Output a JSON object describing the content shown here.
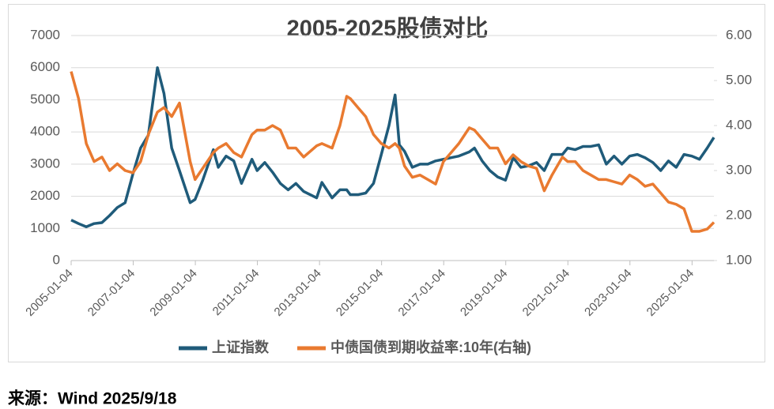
{
  "chart_data": {
    "type": "line",
    "title": "2005-2025股债对比",
    "source": "来源：Wind 2025/9/18",
    "x": [
      "2005-01-04",
      "2005-04-01",
      "2005-07-01",
      "2005-10-01",
      "2006-01-01",
      "2006-04-01",
      "2006-07-01",
      "2006-10-01",
      "2007-01-01",
      "2007-04-01",
      "2007-07-01",
      "2007-10-16",
      "2008-01-01",
      "2008-04-01",
      "2008-07-01",
      "2008-11-04",
      "2009-01-01",
      "2009-04-01",
      "2009-08-04",
      "2009-10-01",
      "2010-01-01",
      "2010-04-01",
      "2010-07-01",
      "2010-11-01",
      "2011-01-01",
      "2011-04-01",
      "2011-07-01",
      "2011-10-01",
      "2012-01-01",
      "2012-04-01",
      "2012-07-01",
      "2012-12-01",
      "2013-02-01",
      "2013-06-01",
      "2013-09-01",
      "2013-11-20",
      "2014-01-01",
      "2014-04-01",
      "2014-07-01",
      "2014-10-01",
      "2015-01-01",
      "2015-04-01",
      "2015-06-12",
      "2015-08-01",
      "2015-10-01",
      "2016-01-01",
      "2016-04-01",
      "2016-07-01",
      "2016-10-01",
      "2017-01-01",
      "2017-04-01",
      "2017-07-01",
      "2017-11-01",
      "2018-01-01",
      "2018-04-01",
      "2018-07-01",
      "2018-10-01",
      "2019-01-01",
      "2019-04-01",
      "2019-07-01",
      "2019-10-01",
      "2020-01-01",
      "2020-04-01",
      "2020-07-01",
      "2020-11-01",
      "2021-01-01",
      "2021-04-01",
      "2021-07-01",
      "2021-10-01",
      "2022-01-01",
      "2022-04-01",
      "2022-07-01",
      "2022-10-01",
      "2023-01-01",
      "2023-04-01",
      "2023-07-01",
      "2023-10-01",
      "2024-01-01",
      "2024-04-01",
      "2024-07-01",
      "2024-10-01",
      "2025-01-01",
      "2025-04-01",
      "2025-07-01",
      "2025-09-18"
    ],
    "series": [
      {
        "name": "上证指数",
        "color": "#1f5b7a",
        "values": [
          1260,
          1150,
          1050,
          1150,
          1180,
          1400,
          1650,
          1800,
          2700,
          3500,
          3900,
          6000,
          5200,
          3500,
          2800,
          1800,
          1900,
          2500,
          3450,
          2900,
          3250,
          3100,
          2400,
          3150,
          2800,
          3050,
          2750,
          2400,
          2200,
          2400,
          2150,
          1950,
          2430,
          1950,
          2200,
          2200,
          2050,
          2050,
          2100,
          2400,
          3300,
          4200,
          5150,
          3600,
          3400,
          2900,
          3000,
          3000,
          3100,
          3150,
          3200,
          3250,
          3380,
          3500,
          3100,
          2800,
          2600,
          2500,
          3200,
          2900,
          2950,
          3050,
          2800,
          3300,
          3300,
          3500,
          3450,
          3550,
          3550,
          3600,
          3000,
          3250,
          3000,
          3250,
          3300,
          3200,
          3050,
          2800,
          3100,
          2900,
          3300,
          3250,
          3150,
          3500,
          3830
        ]
      },
      {
        "name": "中债国债到期收益率:10年(右轴)",
        "color": "#e97a30",
        "axis": "y2",
        "values": [
          5.2,
          4.6,
          3.6,
          3.2,
          3.3,
          3.0,
          3.15,
          3.0,
          2.95,
          3.2,
          3.8,
          4.3,
          4.4,
          4.2,
          4.5,
          3.2,
          2.8,
          3.05,
          3.4,
          3.5,
          3.6,
          3.4,
          3.3,
          3.8,
          3.9,
          3.9,
          4.0,
          3.9,
          3.5,
          3.5,
          3.3,
          3.55,
          3.6,
          3.5,
          4.0,
          4.65,
          4.6,
          4.4,
          4.2,
          3.8,
          3.6,
          3.5,
          3.6,
          3.5,
          3.1,
          2.85,
          2.9,
          2.8,
          2.7,
          3.2,
          3.4,
          3.6,
          3.95,
          3.9,
          3.7,
          3.5,
          3.5,
          3.15,
          3.35,
          3.2,
          3.1,
          3.05,
          2.55,
          2.9,
          3.3,
          3.2,
          3.2,
          3.0,
          2.9,
          2.8,
          2.8,
          2.75,
          2.7,
          2.9,
          2.8,
          2.65,
          2.7,
          2.5,
          2.3,
          2.25,
          2.15,
          1.65,
          1.65,
          1.7,
          1.85
        ]
      }
    ],
    "xlim": [
      "2005-01-04",
      "2025-09-18"
    ],
    "xticks": [
      "2005-01-04",
      "2007-01-04",
      "2009-01-04",
      "2011-01-04",
      "2013-01-04",
      "2015-01-04",
      "2017-01-04",
      "2019-01-04",
      "2021-01-04",
      "2023-01-04",
      "2025-01-04"
    ],
    "ylim": [
      0,
      7000
    ],
    "yticks": [
      0,
      1000,
      2000,
      3000,
      4000,
      5000,
      6000,
      7000
    ],
    "y2lim": [
      1,
      6
    ],
    "y2ticks": [
      {
        "value": 1,
        "label": "1.00"
      },
      {
        "value": 2,
        "label": "2.00"
      },
      {
        "value": 3,
        "label": "3.00"
      },
      {
        "value": 4,
        "label": "4.00"
      },
      {
        "value": 5,
        "label": "5.00"
      },
      {
        "value": 6,
        "label": "6.00"
      }
    ],
    "grid": true,
    "legend": "bottom"
  }
}
